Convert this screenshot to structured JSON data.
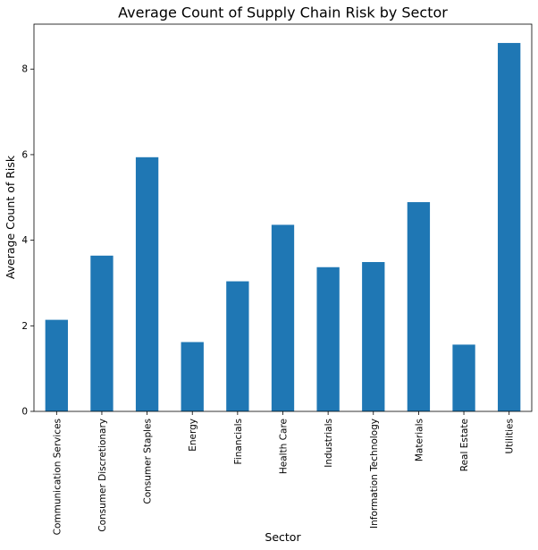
{
  "chart_data": {
    "type": "bar",
    "title": "Average Count of Supply Chain Risk by Sector",
    "xlabel": "Sector",
    "ylabel": "Average Count of Risk",
    "categories": [
      "Communication Services",
      "Consumer Discretionary",
      "Consumer Staples",
      "Energy",
      "Financials",
      "Health Care",
      "Industrials",
      "Information Technology",
      "Materials",
      "Real Estate",
      "Utilities"
    ],
    "values": [
      2.14,
      3.64,
      5.94,
      1.62,
      3.04,
      4.36,
      3.37,
      3.49,
      4.89,
      1.56,
      8.61
    ],
    "ylim": [
      0,
      9.05
    ],
    "yticks": [
      0,
      2,
      4,
      6,
      8
    ],
    "grid": false,
    "colors": {
      "bar": "#1f77b4",
      "axis": "#000000",
      "background": "#ffffff"
    }
  }
}
